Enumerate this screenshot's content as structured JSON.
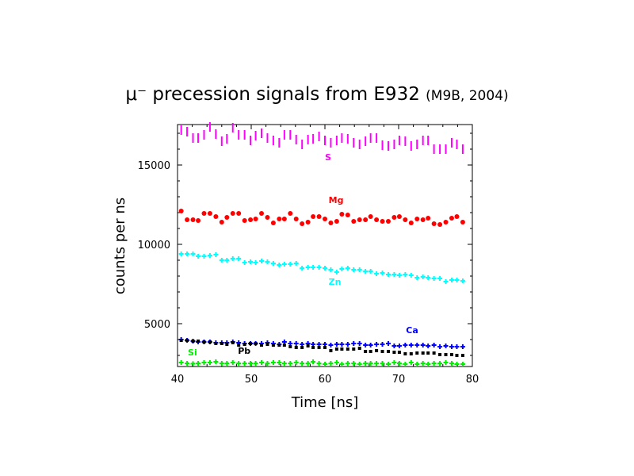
{
  "chart_data": {
    "type": "scatter",
    "title": "μ⁻ precession signals from E932",
    "subtitle": "(M9B, 2004)",
    "xlabel": "Time [ns]",
    "ylabel": "counts per ns",
    "xlim": [
      40,
      80
    ],
    "ylim": [
      2300,
      17550
    ],
    "xticks": [
      40,
      50,
      60,
      70,
      80
    ],
    "yticks": [
      5000,
      10000,
      15000
    ],
    "grid": false,
    "x": [
      40.5,
      41.3,
      42.1,
      42.8,
      43.6,
      44.4,
      45.2,
      46.0,
      46.7,
      47.5,
      48.3,
      49.1,
      49.9,
      50.6,
      51.4,
      52.2,
      53.0,
      53.8,
      54.5,
      55.3,
      56.1,
      56.9,
      57.7,
      58.4,
      59.2,
      60.0,
      60.8,
      61.6,
      62.3,
      63.1,
      63.9,
      64.7,
      65.5,
      66.2,
      67.0,
      67.8,
      68.6,
      69.4,
      70.1,
      70.9,
      71.7,
      72.5,
      73.3,
      74.0,
      74.8,
      75.6,
      76.4,
      77.2,
      77.9,
      78.7
    ],
    "series": [
      {
        "name": "S",
        "color": "#ff00ff",
        "marker": "vline",
        "label_pos": [
          60,
          15300
        ],
        "values": [
          17200,
          17100,
          16700,
          16700,
          16900,
          17400,
          16950,
          16500,
          16650,
          17350,
          16900,
          16900,
          16550,
          16850,
          17000,
          16700,
          16550,
          16400,
          16900,
          16900,
          16600,
          16300,
          16600,
          16650,
          16800,
          16550,
          16400,
          16550,
          16700,
          16650,
          16400,
          16300,
          16500,
          16700,
          16700,
          16250,
          16200,
          16300,
          16550,
          16500,
          16200,
          16300,
          16550,
          16550,
          16000,
          16000,
          16000,
          16400,
          16300,
          16000
        ]
      },
      {
        "name": "Mg",
        "color": "#ff0000",
        "marker": "circle",
        "label_pos": [
          60.5,
          12600
        ],
        "values": [
          12100,
          11550,
          11550,
          11500,
          11950,
          11950,
          11750,
          11400,
          11700,
          11950,
          11950,
          11500,
          11550,
          11600,
          11950,
          11700,
          11350,
          11600,
          11600,
          11950,
          11600,
          11300,
          11400,
          11750,
          11750,
          11600,
          11350,
          11450,
          11900,
          11850,
          11450,
          11550,
          11550,
          11750,
          11550,
          11450,
          11450,
          11700,
          11750,
          11550,
          11350,
          11600,
          11550,
          11650,
          11300,
          11250,
          11400,
          11650,
          11750,
          11400
        ]
      },
      {
        "name": "Zn",
        "color": "#00ffff",
        "marker": "plus",
        "label_pos": [
          60.5,
          7450
        ],
        "values": [
          9400,
          9400,
          9400,
          9250,
          9250,
          9300,
          9350,
          9000,
          9000,
          9100,
          9100,
          8850,
          8900,
          8850,
          8950,
          8900,
          8800,
          8700,
          8750,
          8750,
          8800,
          8500,
          8550,
          8550,
          8550,
          8500,
          8400,
          8250,
          8450,
          8500,
          8400,
          8400,
          8300,
          8300,
          8150,
          8200,
          8100,
          8100,
          8050,
          8100,
          8050,
          7900,
          7950,
          7900,
          7850,
          7850,
          7650,
          7750,
          7750,
          7700
        ]
      },
      {
        "name": "Ca",
        "color": "#0000ff",
        "marker": "plus",
        "label_pos": [
          71,
          4400
        ],
        "values": [
          4000,
          3950,
          3900,
          3850,
          3850,
          3850,
          3800,
          3800,
          3800,
          3850,
          3800,
          3750,
          3750,
          3750,
          3750,
          3800,
          3750,
          3700,
          3850,
          3750,
          3750,
          3700,
          3750,
          3700,
          3700,
          3700,
          3650,
          3700,
          3700,
          3700,
          3750,
          3750,
          3650,
          3650,
          3700,
          3700,
          3750,
          3600,
          3600,
          3650,
          3650,
          3650,
          3650,
          3600,
          3650,
          3550,
          3600,
          3550,
          3550,
          3550
        ]
      },
      {
        "name": "Pb",
        "color": "#000000",
        "marker": "square",
        "label_pos": [
          48.2,
          3100
        ],
        "values": [
          3950,
          3950,
          3900,
          3900,
          3850,
          3850,
          3750,
          3750,
          3700,
          3800,
          3650,
          3700,
          3750,
          3750,
          3650,
          3700,
          3650,
          3650,
          3650,
          3550,
          3500,
          3500,
          3600,
          3500,
          3500,
          3500,
          3300,
          3400,
          3400,
          3400,
          3400,
          3450,
          3250,
          3250,
          3300,
          3250,
          3250,
          3200,
          3200,
          3100,
          3100,
          3150,
          3150,
          3150,
          3150,
          3050,
          3050,
          3050,
          3000,
          3000
        ]
      },
      {
        "name": "Si",
        "color": "#00ee00",
        "marker": "plus",
        "label_pos": [
          41.4,
          3000
        ],
        "values": [
          2550,
          2500,
          2480,
          2500,
          2550,
          2550,
          2600,
          2500,
          2500,
          2550,
          2500,
          2500,
          2500,
          2500,
          2550,
          2500,
          2550,
          2550,
          2500,
          2500,
          2550,
          2500,
          2500,
          2600,
          2500,
          2450,
          2500,
          2550,
          2450,
          2500,
          2500,
          2450,
          2500,
          2500,
          2500,
          2500,
          2450,
          2550,
          2500,
          2450,
          2550,
          2450,
          2500,
          2450,
          2500,
          2500,
          2550,
          2500,
          2450,
          2450
        ]
      }
    ]
  }
}
